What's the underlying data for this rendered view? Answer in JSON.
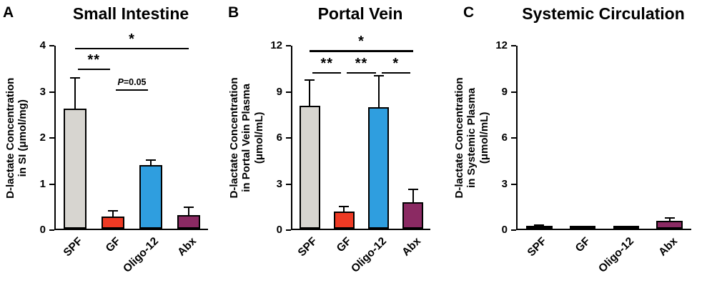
{
  "figure": {
    "background": "#ffffff",
    "axis_color": "#000000"
  },
  "chart_data": [
    {
      "type": "bar",
      "panel_label": "A",
      "title": "Small Intestine",
      "ylabel": "D-lactate Concentration\nin SI (μmol/mg)",
      "categories": [
        "SPF",
        "GF",
        "Oligo-12",
        "Abx"
      ],
      "values": [
        2.6,
        0.27,
        1.38,
        0.3
      ],
      "errors": [
        0.68,
        0.13,
        0.12,
        0.18
      ],
      "bar_colors": [
        "#d7d5d0",
        "#ee3a24",
        "#2f9edf",
        "#8b2a63"
      ],
      "ylim": [
        0,
        4
      ],
      "yticks": [
        0,
        1,
        2,
        3,
        4
      ],
      "grid": false,
      "legend": "none",
      "significance": [
        {
          "from": "SPF",
          "to": "Abx",
          "label": "*",
          "y": 3.95
        },
        {
          "from": "SPF",
          "to": "GF",
          "label": "**",
          "y": 3.5
        },
        {
          "from": "GF",
          "to": "Oligo-12",
          "label": "P=0.05",
          "y": 3.05
        }
      ]
    },
    {
      "type": "bar",
      "panel_label": "B",
      "title": "Portal Vein",
      "ylabel": "D-lactate Concentration\nin Portal Vein Plasma\n(μmol/mL)",
      "categories": [
        "SPF",
        "GF",
        "Oligo-12",
        "Abx"
      ],
      "values": [
        8.0,
        1.1,
        7.9,
        1.7
      ],
      "errors": [
        1.7,
        0.4,
        2.1,
        0.9
      ],
      "bar_colors": [
        "#d7d5d0",
        "#ee3a24",
        "#2f9edf",
        "#8b2a63"
      ],
      "ylim": [
        0,
        12
      ],
      "yticks": [
        0,
        3,
        6,
        9,
        12
      ],
      "grid": false,
      "legend": "none",
      "significance": [
        {
          "from": "SPF",
          "to": "Abx",
          "label": "*",
          "y": 11.7
        },
        {
          "from": "SPF",
          "to": "GF",
          "label": "**",
          "y": 10.3
        },
        {
          "from": "GF",
          "to": "Oligo-12",
          "label": "**",
          "y": 10.3
        },
        {
          "from": "Oligo-12",
          "to": "Abx",
          "label": "*",
          "y": 10.3
        }
      ]
    },
    {
      "type": "bar",
      "panel_label": "C",
      "title": "Systemic Circulation",
      "ylabel": "D-lactate Concentration\nin Systemic Plasma\n(μmol/mL)",
      "categories": [
        "SPF",
        "GF",
        "Oligo-12",
        "Abx"
      ],
      "values": [
        0.2,
        0.15,
        0.15,
        0.5
      ],
      "errors": [
        0.08,
        0.05,
        0.05,
        0.25
      ],
      "bar_colors": [
        "#d7d5d0",
        "#ee3a24",
        "#2f9edf",
        "#8b2a63"
      ],
      "ylim": [
        0,
        12
      ],
      "yticks": [
        0,
        3,
        6,
        9,
        12
      ],
      "grid": false,
      "legend": "none",
      "significance": []
    }
  ]
}
